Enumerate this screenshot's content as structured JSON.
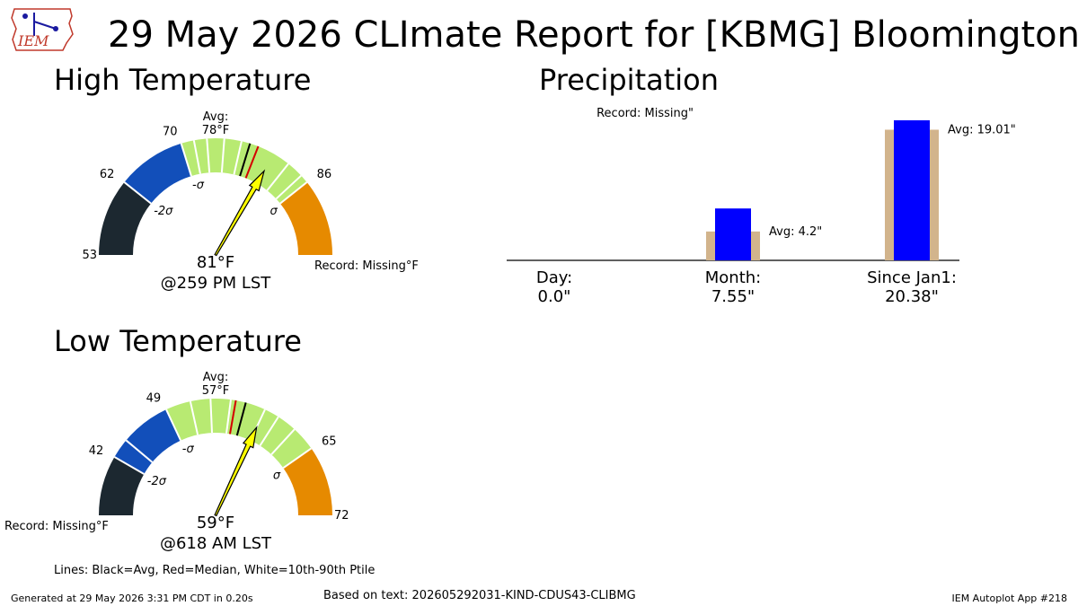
{
  "header": {
    "title": "29 May 2026 CLImate Report for [KBMG] Bloomington",
    "logo_text": "IEM"
  },
  "footer": {
    "lines_legend": "Lines: Black=Avg, Red=Median, White=10th-90th Ptile",
    "generated": "Generated at 29 May 2026 3:31 PM CDT in 0.20s",
    "based_on": "Based on text: 202605292031-KIND-CDUS43-CLIBMG",
    "app_id": "IEM Autoplot App #218"
  },
  "chart_data": [
    {
      "type": "gauge",
      "title": "High Temperature",
      "min": 53,
      "max": 95,
      "tick_labels": [
        53,
        62,
        70,
        86
      ],
      "sigma_labels": [
        "-2σ",
        "-σ",
        "σ"
      ],
      "bands": [
        {
          "from": 53,
          "to": 62,
          "color": "#1c2830"
        },
        {
          "from": 62,
          "to": 70,
          "color": "#124fba"
        },
        {
          "from": 70,
          "to": 86,
          "color": "#b8ea72"
        },
        {
          "from": 86,
          "to": 95,
          "color": "#e68a00"
        }
      ],
      "percentile_lines": [
        71.5,
        73,
        75,
        77,
        83,
        85
      ],
      "average": 78,
      "average_label": "Avg:\n78°F",
      "median": 79,
      "value": 81,
      "value_label": "81°F",
      "time_label": "@259 PM LST",
      "record_label": "Record: Missing°F"
    },
    {
      "type": "gauge",
      "title": "Low Temperature",
      "min": 36,
      "max": 72,
      "tick_labels": [
        42,
        49,
        65,
        72
      ],
      "sigma_labels": [
        "-2σ",
        "-σ",
        "σ"
      ],
      "bands": [
        {
          "from": 36,
          "to": 42,
          "color": "#1c2830"
        },
        {
          "from": 42,
          "to": 49,
          "color": "#124fba"
        },
        {
          "from": 49,
          "to": 65,
          "color": "#b8ea72"
        },
        {
          "from": 65,
          "to": 72,
          "color": "#e68a00"
        }
      ],
      "percentile_lines": [
        44,
        51.5,
        53.5,
        55.5,
        59,
        60.5,
        62.5
      ],
      "average": 57,
      "median": 56,
      "average_label": "Avg:\n57°F",
      "value": 59,
      "value_label": "59°F",
      "time_label": "@618 AM LST",
      "record_label": "Record: Missing°F"
    },
    {
      "type": "bar",
      "title": "Precipitation",
      "categories": [
        "Day:\n0.0\"",
        "Month:\n7.55\"",
        "Since Jan1:\n20.38\""
      ],
      "series": [
        {
          "values": [
            0,
            4.2,
            19.01
          ],
          "color": "#d2b48c"
        },
        {
          "values": [
            0.0,
            7.55,
            20.38
          ],
          "color": "#0000ff"
        }
      ],
      "annotations": [
        "Record: Missing\"",
        "Avg: 4.2\"",
        "Avg: 19.01\""
      ],
      "ylim": [
        0,
        20.38
      ]
    }
  ]
}
